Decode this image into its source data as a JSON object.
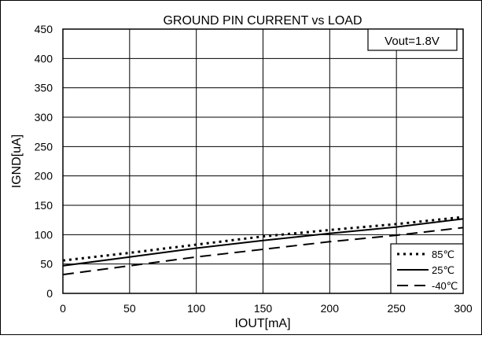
{
  "chart_data": {
    "type": "line",
    "title": "GROUND PIN CURRENT vs LOAD",
    "annotation": "Vout=1.8V",
    "xlabel": "IOUT[mA]",
    "ylabel": "IGND[uA]",
    "xlim": [
      0,
      300
    ],
    "ylim": [
      0,
      450
    ],
    "x_ticks": [
      0,
      50,
      100,
      150,
      200,
      250,
      300
    ],
    "y_ticks": [
      0,
      50,
      100,
      150,
      200,
      250,
      300,
      350,
      400,
      450
    ],
    "grid": true,
    "legend_position": "bottom-right",
    "series": [
      {
        "name": "85℃",
        "style": "dotted",
        "color": "#000000",
        "x": [
          0,
          50,
          100,
          150,
          200,
          250,
          300
        ],
        "y": [
          56,
          69,
          83,
          97,
          108,
          118,
          130
        ]
      },
      {
        "name": "25℃",
        "style": "solid",
        "color": "#000000",
        "x": [
          0,
          50,
          100,
          150,
          200,
          250,
          300
        ],
        "y": [
          47,
          62,
          77,
          90,
          102,
          113,
          127
        ]
      },
      {
        "name": "-40℃",
        "style": "dashed",
        "color": "#000000",
        "x": [
          0,
          50,
          100,
          150,
          200,
          250,
          300
        ],
        "y": [
          32,
          47,
          62,
          75,
          88,
          99,
          112
        ]
      }
    ]
  }
}
